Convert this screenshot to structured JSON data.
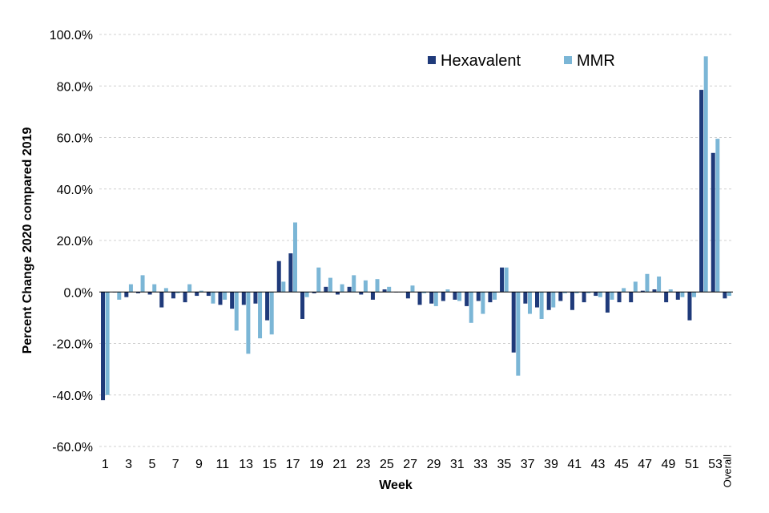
{
  "chart_data": {
    "type": "bar",
    "xlabel": "Week",
    "ylabel": "Percent Change 2020 compared 2019",
    "ylim": [
      -60,
      100
    ],
    "yticks": [
      "100.0%",
      "80.0%",
      "60.0%",
      "40.0%",
      "20.0%",
      "0.0%",
      "-20.0%",
      "-40.0%",
      "-60.0%"
    ],
    "ytick_values": [
      100,
      80,
      60,
      40,
      20,
      0,
      -20,
      -40,
      -60
    ],
    "grid": true,
    "legend_position": "top-right",
    "categories": [
      "1",
      "2",
      "3",
      "4",
      "5",
      "6",
      "7",
      "8",
      "9",
      "10",
      "11",
      "12",
      "13",
      "14",
      "15",
      "16",
      "17",
      "18",
      "19",
      "20",
      "21",
      "22",
      "23",
      "24",
      "25",
      "26",
      "27",
      "28",
      "29",
      "30",
      "31",
      "32",
      "33",
      "34",
      "35",
      "36",
      "37",
      "38",
      "39",
      "40",
      "41",
      "42",
      "43",
      "44",
      "45",
      "46",
      "47",
      "48",
      "49",
      "50",
      "51",
      "52",
      "53",
      "Overall"
    ],
    "tick_labels": [
      "1",
      "",
      "3",
      "",
      "5",
      "",
      "7",
      "",
      "9",
      "",
      "11",
      "",
      "13",
      "",
      "15",
      "",
      "17",
      "",
      "19",
      "",
      "21",
      "",
      "23",
      "",
      "25",
      "",
      "27",
      "",
      "29",
      "",
      "31",
      "",
      "33",
      "",
      "35",
      "",
      "37",
      "",
      "39",
      "",
      "41",
      "",
      "43",
      "",
      "45",
      "",
      "47",
      "",
      "49",
      "",
      "51",
      "",
      "53",
      "Overall"
    ],
    "series": [
      {
        "name": "Hexavalent",
        "color": "#1f3a7a",
        "values": [
          -42.0,
          0.0,
          -2.0,
          -0.5,
          -1.0,
          -6.0,
          -2.5,
          -4.0,
          -1.5,
          -1.5,
          -5.0,
          -6.5,
          -5.0,
          -4.5,
          -11.0,
          12.0,
          15.0,
          -10.5,
          -0.5,
          2.0,
          -1.0,
          2.0,
          -1.0,
          -3.0,
          1.0,
          0.0,
          -2.5,
          -5.0,
          -4.5,
          -3.5,
          -3.0,
          -5.5,
          -3.5,
          -4.0,
          9.5,
          -23.5,
          -4.5,
          -6.0,
          -7.0,
          -3.5,
          -7.0,
          -4.0,
          -1.5,
          -8.0,
          -4.0,
          -4.0,
          0.5,
          1.0,
          -4.0,
          -3.0,
          -11.0,
          78.5,
          54.0,
          -2.5
        ]
      },
      {
        "name": "MMR",
        "color": "#7bb6d6",
        "values": [
          -40.0,
          -3.0,
          3.0,
          6.5,
          3.0,
          1.5,
          -0.5,
          3.0,
          0.5,
          -4.5,
          -3.0,
          -15.0,
          -24.0,
          -18.0,
          -16.5,
          4.0,
          27.0,
          -2.0,
          9.5,
          5.5,
          3.0,
          6.5,
          4.5,
          5.0,
          2.0,
          0.0,
          2.5,
          -0.5,
          -5.5,
          1.0,
          -3.5,
          -12.0,
          -8.5,
          -3.0,
          9.5,
          -32.5,
          -8.5,
          -10.5,
          -6.0,
          -0.5,
          -0.5,
          -0.5,
          -2.0,
          -3.0,
          1.5,
          4.0,
          7.0,
          6.0,
          1.0,
          -2.0,
          -2.0,
          91.5,
          59.5,
          -1.5
        ]
      }
    ]
  }
}
